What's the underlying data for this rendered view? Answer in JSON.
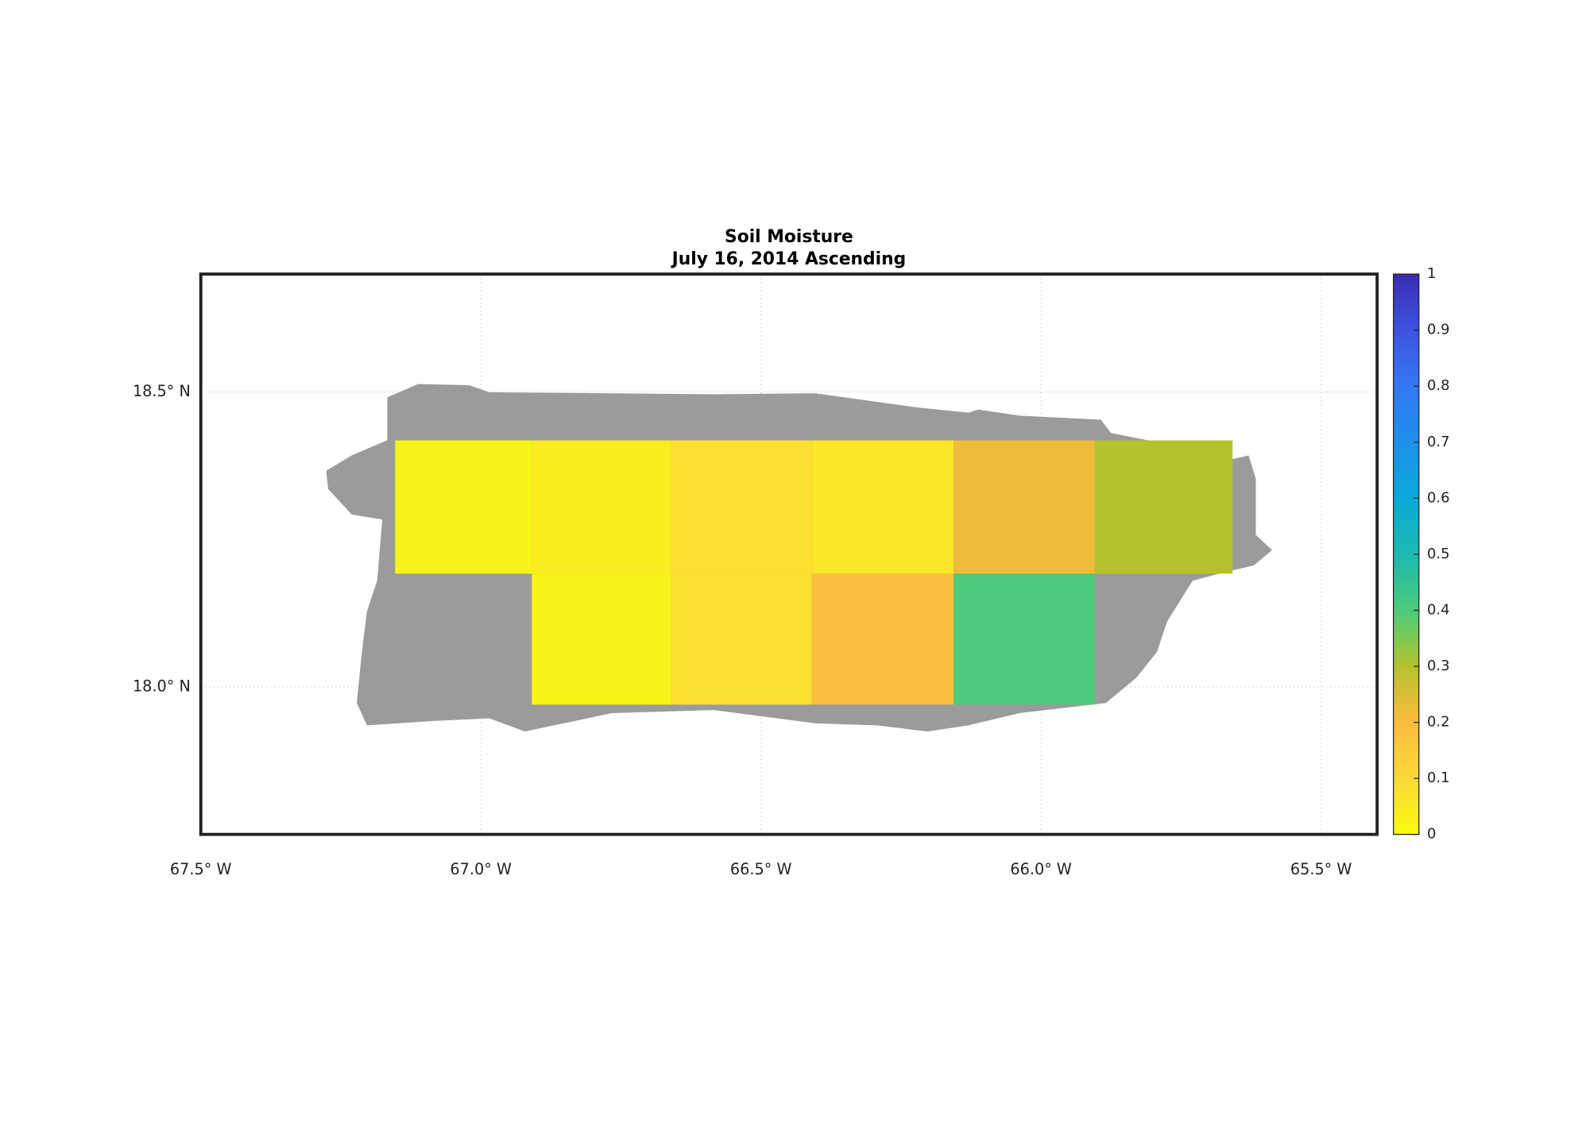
{
  "chart_data": {
    "type": "gridmap",
    "title": "Soil Moisture",
    "subtitle": "July 16, 2014 Ascending",
    "xlim": [
      -67.5,
      -65.4
    ],
    "ylim": [
      17.75,
      18.7
    ],
    "xticks": [
      {
        "value": -67.5,
        "label": "67.5° W"
      },
      {
        "value": -67.0,
        "label": "67.0° W"
      },
      {
        "value": -66.5,
        "label": "66.5° W"
      },
      {
        "value": -66.0,
        "label": "66.0° W"
      },
      {
        "value": -65.5,
        "label": "65.5° W"
      }
    ],
    "yticks": [
      {
        "value": 18.0,
        "label": "18.0° N"
      },
      {
        "value": 18.5,
        "label": "18.5° N"
      }
    ],
    "grid": true,
    "land_color": "#9b9b9b",
    "cells": [
      {
        "lon": [
          -67.153,
          -66.909
        ],
        "lat": [
          18.192,
          18.418
        ],
        "value": 0.02
      },
      {
        "lon": [
          -66.909,
          -66.66
        ],
        "lat": [
          18.192,
          18.418
        ],
        "value": 0.04
      },
      {
        "lon": [
          -66.66,
          -66.409
        ],
        "lat": [
          18.192,
          18.418
        ],
        "value": 0.08
      },
      {
        "lon": [
          -66.409,
          -66.156
        ],
        "lat": [
          18.192,
          18.418
        ],
        "value": 0.06
      },
      {
        "lon": [
          -66.156,
          -65.904
        ],
        "lat": [
          18.192,
          18.418
        ],
        "value": 0.22
      },
      {
        "lon": [
          -65.904,
          -65.658
        ],
        "lat": [
          18.192,
          18.418
        ],
        "value": 0.3
      },
      {
        "lon": [
          -66.909,
          -66.66
        ],
        "lat": [
          17.97,
          18.192
        ],
        "value": 0.02
      },
      {
        "lon": [
          -66.66,
          -66.409
        ],
        "lat": [
          17.97,
          18.192
        ],
        "value": 0.08
      },
      {
        "lon": [
          -66.409,
          -66.156
        ],
        "lat": [
          17.97,
          18.192
        ],
        "value": 0.19
      },
      {
        "lon": [
          -66.156,
          -65.904
        ],
        "lat": [
          17.97,
          18.192
        ],
        "value": 0.4
      }
    ],
    "clim": [
      0,
      1
    ],
    "cticks": [
      0,
      0.1,
      0.2,
      0.3,
      0.4,
      0.5,
      0.6,
      0.7,
      0.8,
      0.9,
      1
    ],
    "colormap": [
      "#f9fb0e",
      "#fbd93a",
      "#fbbb3e",
      "#b4c22e",
      "#4ccb7b",
      "#1cb9b0",
      "#0ba8d8",
      "#1e90ea",
      "#3377f5",
      "#3e52e0",
      "#3a2bb0"
    ]
  }
}
